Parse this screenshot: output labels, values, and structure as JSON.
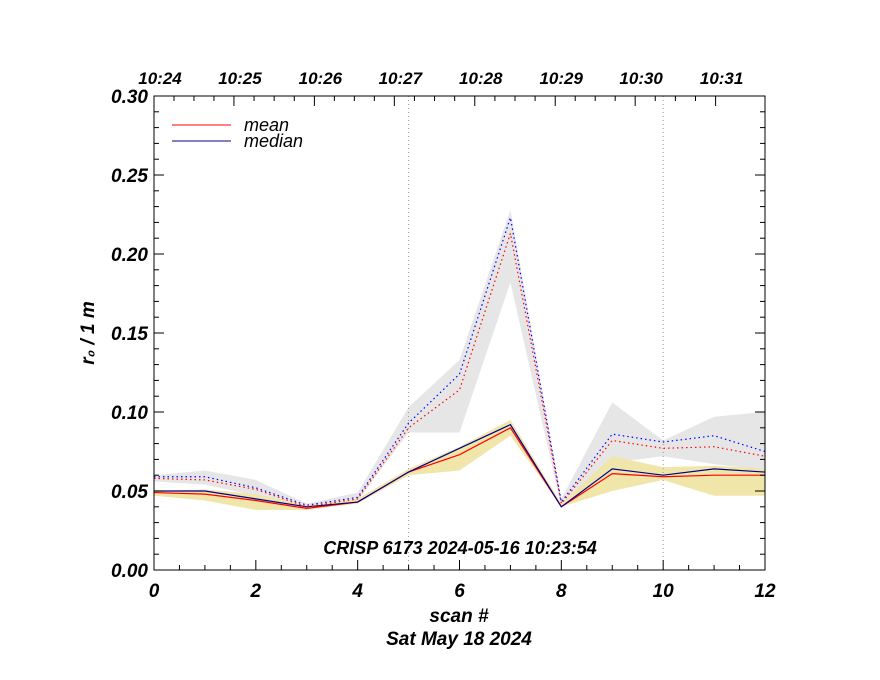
{
  "chart_data": {
    "type": "line",
    "title": "",
    "annotation": "CRISP 6173 2024-05-16 10:23:54",
    "xlabel": "scan #",
    "xlabel2": "Sat May 18 2024",
    "ylabel": "r₀ / 1 m",
    "xlim": [
      0,
      12
    ],
    "ylim": [
      0,
      0.3
    ],
    "x_ticks": [
      "0",
      "2",
      "4",
      "6",
      "8",
      "10",
      "12"
    ],
    "y_ticks": [
      "0.00",
      "0.05",
      "0.10",
      "0.15",
      "0.20",
      "0.25",
      "0.30"
    ],
    "top_ticks": [
      {
        "x": 0,
        "label": "10:24"
      },
      {
        "x": 1.57,
        "label": "10:25"
      },
      {
        "x": 3.15,
        "label": "10:26"
      },
      {
        "x": 4.72,
        "label": "10:27"
      },
      {
        "x": 6.3,
        "label": "10:28"
      },
      {
        "x": 7.88,
        "label": "10:29"
      },
      {
        "x": 9.45,
        "label": "10:30"
      },
      {
        "x": 11.03,
        "label": "10:31"
      }
    ],
    "vlines": [
      5,
      10
    ],
    "x": [
      0,
      1,
      2,
      3,
      4,
      5,
      6,
      7,
      8,
      9,
      10,
      11,
      12
    ],
    "series": [
      {
        "name": "mean",
        "color": "#ff0000",
        "style": "solid",
        "values": [
          0.049,
          0.048,
          0.044,
          0.039,
          0.043,
          0.062,
          0.073,
          0.09,
          0.04,
          0.061,
          0.059,
          0.06,
          0.06
        ]
      },
      {
        "name": "median",
        "color": "#00008b",
        "style": "solid",
        "values": [
          0.05,
          0.05,
          0.045,
          0.04,
          0.043,
          0.062,
          0.077,
          0.092,
          0.04,
          0.064,
          0.06,
          0.064,
          0.062
        ]
      },
      {
        "name": "mean (dotted)",
        "color": "#ff0000",
        "style": "dotted",
        "values": [
          0.058,
          0.057,
          0.051,
          0.04,
          0.045,
          0.09,
          0.114,
          0.213,
          0.042,
          0.082,
          0.077,
          0.078,
          0.072
        ]
      },
      {
        "name": "median (dotted)",
        "color": "#0000ff",
        "style": "dotted",
        "values": [
          0.059,
          0.059,
          0.052,
          0.041,
          0.046,
          0.093,
          0.124,
          0.223,
          0.043,
          0.086,
          0.081,
          0.085,
          0.075
        ]
      }
    ],
    "bands": [
      {
        "name": "spread (high values)",
        "color": "#e6e6e6",
        "upper": [
          0.06,
          0.063,
          0.057,
          0.042,
          0.049,
          0.103,
          0.133,
          0.228,
          0.045,
          0.106,
          0.082,
          0.097,
          0.1
        ],
        "lower": [
          0.056,
          0.054,
          0.047,
          0.039,
          0.044,
          0.087,
          0.087,
          0.182,
          0.04,
          0.068,
          0.072,
          0.067,
          0.063
        ]
      },
      {
        "name": "spread (low values)",
        "color": "#f0e6aa",
        "upper": [
          0.05,
          0.051,
          0.048,
          0.041,
          0.045,
          0.064,
          0.078,
          0.095,
          0.042,
          0.072,
          0.065,
          0.066,
          0.064
        ],
        "lower": [
          0.047,
          0.044,
          0.038,
          0.038,
          0.042,
          0.06,
          0.063,
          0.085,
          0.04,
          0.05,
          0.057,
          0.047,
          0.047
        ]
      }
    ],
    "legend": [
      {
        "label": "mean",
        "color": "#ff0000"
      },
      {
        "label": "median",
        "color": "#00008b"
      }
    ],
    "legend_position": "top-left"
  }
}
